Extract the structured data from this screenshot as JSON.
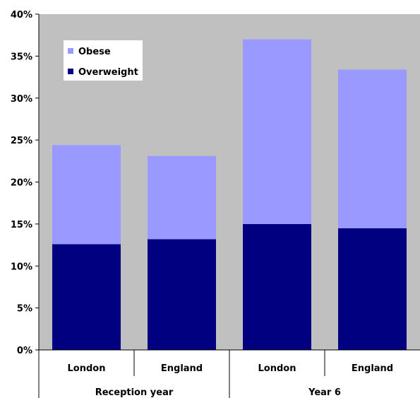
{
  "chart_data": {
    "type": "bar",
    "stacked": true,
    "categories": [
      "London",
      "England",
      "London",
      "England"
    ],
    "groups": [
      {
        "label": "Reception year",
        "categories": [
          "London",
          "England"
        ]
      },
      {
        "label": "Year 6",
        "categories": [
          "London",
          "England"
        ]
      }
    ],
    "series": [
      {
        "name": "Overweight",
        "color": "#000080",
        "values": [
          12.6,
          13.2,
          15.0,
          14.5
        ]
      },
      {
        "name": "Obese",
        "color": "#9999ff",
        "values": [
          11.8,
          9.9,
          22.0,
          18.9
        ]
      }
    ],
    "y_ticks": [
      "0%",
      "5%",
      "10%",
      "15%",
      "20%",
      "25%",
      "30%",
      "35%",
      "40%"
    ],
    "ylim": [
      0,
      40
    ],
    "grid": false,
    "plot_background": "#c0c0c0",
    "legend": {
      "position": "top-left",
      "order": [
        "Obese",
        "Overweight"
      ]
    }
  }
}
